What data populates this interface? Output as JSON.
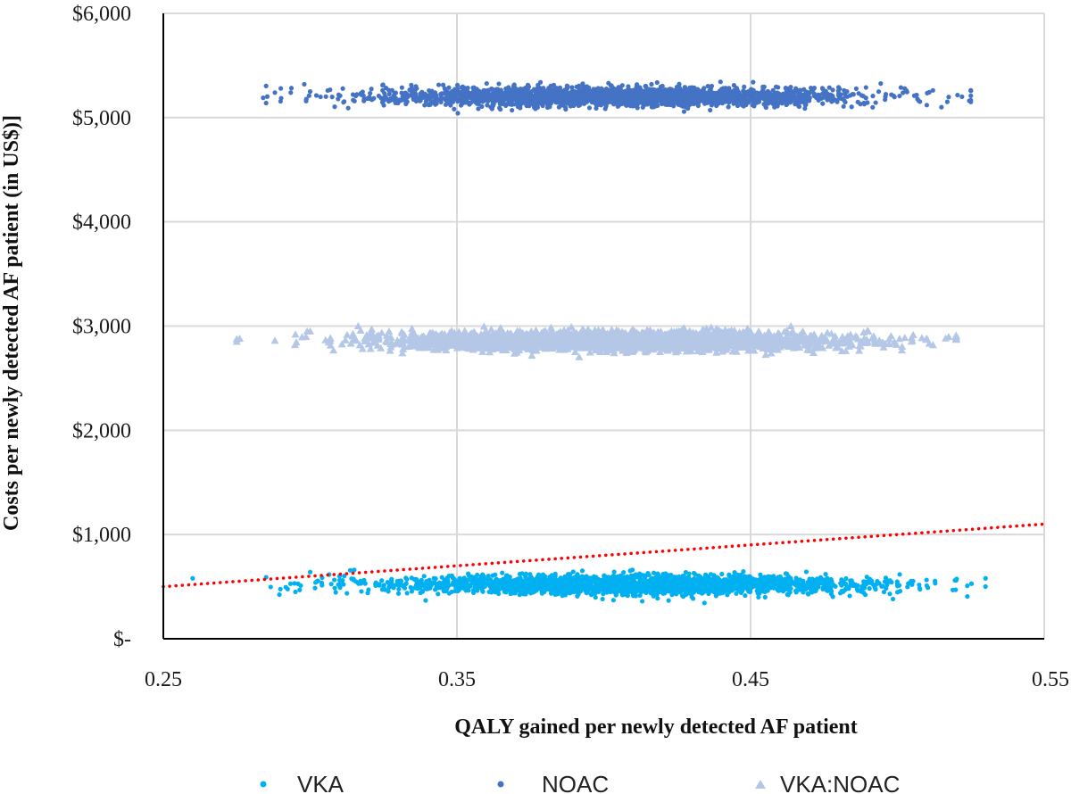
{
  "chart_data": {
    "type": "scatter",
    "title": "",
    "xlabel": "QALY gained per newly detected AF patient",
    "ylabel": "Costs per newly detected AF patient (in US$)]",
    "xlim": [
      0.25,
      0.55
    ],
    "ylim": [
      0,
      6000
    ],
    "x_ticks": [
      0.25,
      0.35,
      0.45,
      0.55
    ],
    "x_tick_labels": [
      "0.25",
      "0.35",
      "0.45",
      "0.55"
    ],
    "y_ticks": [
      0,
      1000,
      2000,
      3000,
      4000,
      5000,
      6000
    ],
    "y_tick_labels": [
      "$-",
      "$1,000",
      "$2,000",
      "$3,000",
      "$4,000",
      "$5,000",
      "$6,000"
    ],
    "grid": "vertical and horizontal",
    "legend_position": "bottom",
    "series": [
      {
        "name": "VKA",
        "marker": "circle",
        "color": "#00b0f0",
        "distribution": {
          "points": 2500,
          "x_mean": 0.41,
          "x_sd": 0.04,
          "x_range": [
            0.26,
            0.53
          ],
          "y_mean": 520,
          "y_sd": 45,
          "y_range": [
            340,
            660
          ]
        },
        "outliers": [
          [
            0.26,
            580
          ],
          [
            0.285,
            590
          ],
          [
            0.295,
            450
          ],
          [
            0.3,
            640
          ],
          [
            0.31,
            600
          ],
          [
            0.315,
            660
          ],
          [
            0.505,
            520
          ],
          [
            0.51,
            510
          ],
          [
            0.52,
            560
          ],
          [
            0.53,
            580
          ]
        ]
      },
      {
        "name": "NOAC",
        "marker": "circle",
        "color": "#4472c4",
        "distribution": {
          "points": 2500,
          "x_mean": 0.405,
          "x_sd": 0.04,
          "x_range": [
            0.285,
            0.525
          ],
          "y_mean": 5200,
          "y_sd": 45,
          "y_range": [
            4990,
            5370
          ]
        },
        "outliers": [
          [
            0.284,
            5190
          ],
          [
            0.288,
            5240
          ],
          [
            0.29,
            5280
          ],
          [
            0.298,
            5320
          ],
          [
            0.3,
            5250
          ],
          [
            0.51,
            5120
          ],
          [
            0.515,
            5100
          ],
          [
            0.522,
            5200
          ]
        ]
      },
      {
        "name": "VKA:NOAC",
        "marker": "triangle",
        "color": "#b4c7e7",
        "distribution": {
          "points": 2500,
          "x_mean": 0.405,
          "x_sd": 0.04,
          "x_range": [
            0.275,
            0.52
          ],
          "y_mean": 2860,
          "y_sd": 45,
          "y_range": [
            2700,
            3000
          ]
        },
        "outliers": [
          [
            0.276,
            2880
          ],
          [
            0.288,
            2860
          ],
          [
            0.295,
            2920
          ],
          [
            0.3,
            2950
          ],
          [
            0.505,
            2860
          ],
          [
            0.51,
            2880
          ],
          [
            0.52,
            2870
          ]
        ]
      }
    ],
    "threshold_line": {
      "style": "dotted",
      "color": "#ff0000",
      "points": [
        [
          0.25,
          500
        ],
        [
          0.55,
          1100
        ]
      ]
    }
  }
}
